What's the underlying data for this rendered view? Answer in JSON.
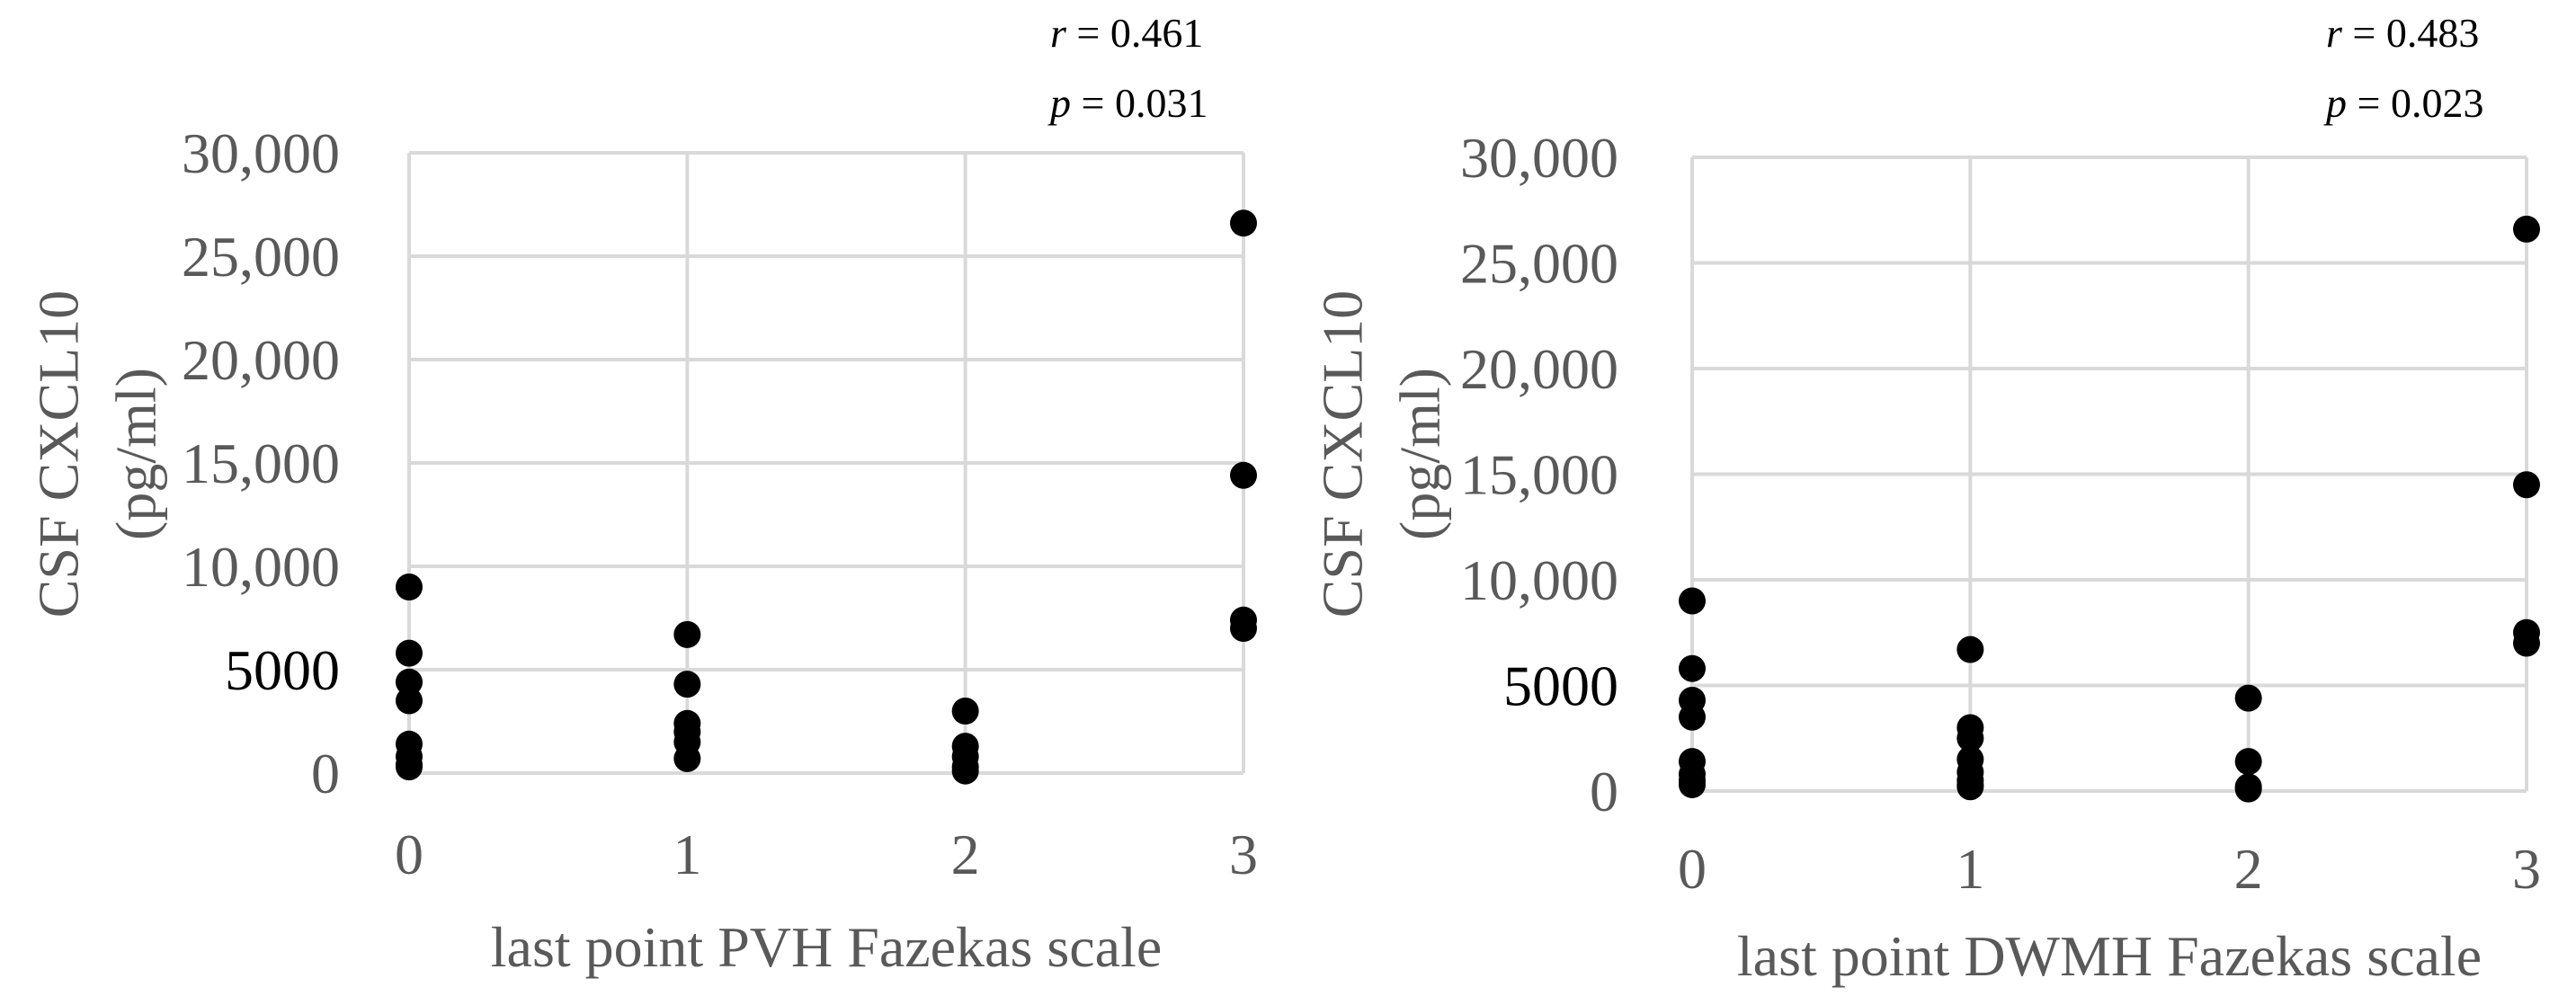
{
  "chart_data": [
    {
      "type": "scatter",
      "stats": {
        "r_label": "r",
        "r_text": " = 0.461",
        "p_label": "p",
        "p_text": " = 0.031"
      },
      "xlabel": "last point PVH Fazekas scale",
      "ylabel_lines": [
        "CSF CXCL10",
        "(pg/ml)"
      ],
      "xlim": [
        0,
        3
      ],
      "ylim": [
        0,
        30000
      ],
      "x_ticks": [
        "0",
        "1",
        "2",
        "3"
      ],
      "y_ticks": [
        "0",
        "5000",
        "10,000",
        "15,000",
        "20,000",
        "25,000",
        "30,000"
      ],
      "grid": true,
      "series": [
        {
          "x": [
            0,
            0,
            0,
            0,
            0,
            0,
            0,
            0,
            1,
            1,
            1,
            1,
            1,
            1,
            2,
            2,
            2,
            2,
            2,
            3,
            3,
            3,
            3
          ],
          "y": [
            9000,
            5800,
            4400,
            3500,
            1400,
            800,
            400,
            300,
            6700,
            4300,
            2400,
            1500,
            700,
            2000,
            3000,
            1300,
            300,
            100,
            800,
            26600,
            14400,
            7400,
            7000
          ]
        }
      ]
    },
    {
      "type": "scatter",
      "stats": {
        "r_label": "r",
        "r_text": " = 0.483",
        "p_label": "p",
        "p_text": " = 0.023"
      },
      "xlabel": "last point DWMH Fazekas scale",
      "ylabel_lines": [
        "CSF CXCL10",
        "(pg/ml)"
      ],
      "xlim": [
        0,
        3
      ],
      "ylim": [
        0,
        30000
      ],
      "x_ticks": [
        "0",
        "1",
        "2",
        "3"
      ],
      "y_ticks": [
        "0",
        "5000",
        "10,000",
        "15,000",
        "20,000",
        "25,000",
        "30,000"
      ],
      "grid": true,
      "series": [
        {
          "x": [
            0,
            0,
            0,
            0,
            0,
            0,
            0,
            0,
            1,
            1,
            1,
            1,
            1,
            1,
            1,
            1,
            2,
            2,
            2,
            2,
            3,
            3,
            3,
            3
          ],
          "y": [
            9000,
            5800,
            4300,
            3500,
            1400,
            800,
            500,
            300,
            6700,
            3000,
            2500,
            1500,
            900,
            500,
            300,
            200,
            4400,
            1400,
            200,
            100,
            26600,
            14500,
            7500,
            7000
          ]
        }
      ]
    }
  ]
}
